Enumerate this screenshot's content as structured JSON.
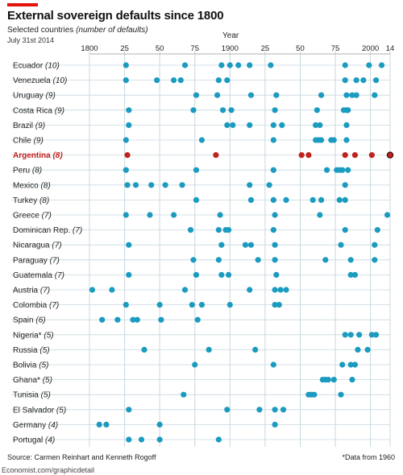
{
  "header": {
    "title": "External sovereign defaults since 1800",
    "subtitle_main": "Selected countries ",
    "subtitle_italic": "(number of defaults)",
    "date": "July 31st 2014",
    "axis_title": "Year"
  },
  "footer": {
    "source": "Source: Carmen Reinhart and Kenneth Rogoff",
    "note": "*Data from 1960",
    "url": "Economist.com/graphicdetail"
  },
  "colors": {
    "dot": "#1b9bbf",
    "highlight": "#c0221d",
    "grid": "#c8d8e0",
    "title_bar": "#e3120b"
  },
  "chart_data": {
    "type": "scatter",
    "title": "External sovereign defaults since 1800",
    "xlabel": "Year",
    "xlim": [
      1800,
      2014
    ],
    "x_ticks": [
      1800,
      1825,
      1850,
      1875,
      1900,
      1925,
      1950,
      1975,
      2000,
      2014
    ],
    "x_tick_labels": [
      "1800",
      "25",
      "50",
      "75",
      "1900",
      "25",
      "50",
      "75",
      "2000",
      "14"
    ],
    "grid": true,
    "series": [
      {
        "name": "Ecuador",
        "count": "(10)",
        "years": [
          1826,
          1868,
          1894,
          1900,
          1906,
          1914,
          1929,
          1982,
          1999,
          2008
        ]
      },
      {
        "name": "Venezuela",
        "count": "(10)",
        "years": [
          1826,
          1848,
          1860,
          1865,
          1892,
          1898,
          1982,
          1990,
          1995,
          2004
        ]
      },
      {
        "name": "Uruguay",
        "count": "(9)",
        "years": [
          1876,
          1891,
          1915,
          1933,
          1965,
          1983,
          1987,
          1990,
          2003
        ]
      },
      {
        "name": "Costa Rica",
        "count": "(9)",
        "years": [
          1828,
          1874,
          1895,
          1901,
          1932,
          1962,
          1981,
          1983,
          1984
        ]
      },
      {
        "name": "Brazil",
        "count": "(9)",
        "years": [
          1828,
          1898,
          1902,
          1914,
          1931,
          1937,
          1961,
          1964,
          1983
        ]
      },
      {
        "name": "Chile",
        "count": "(9)",
        "years": [
          1826,
          1880,
          1931,
          1961,
          1963,
          1965,
          1972,
          1974,
          1983
        ]
      },
      {
        "name": "Argentina",
        "count": "(8)",
        "highlight": true,
        "years": [
          1827,
          1890,
          1951,
          1956,
          1982,
          1989,
          2001,
          2014
        ]
      },
      {
        "name": "Peru",
        "count": "(8)",
        "years": [
          1826,
          1876,
          1931,
          1969,
          1976,
          1978,
          1980,
          1984
        ]
      },
      {
        "name": "Mexico",
        "count": "(8)",
        "years": [
          1827,
          1833,
          1844,
          1854,
          1866,
          1914,
          1928,
          1982
        ]
      },
      {
        "name": "Turkey",
        "count": "(8)",
        "years": [
          1876,
          1915,
          1931,
          1940,
          1959,
          1965,
          1978,
          1982
        ]
      },
      {
        "name": "Greece",
        "count": "(7)",
        "years": [
          1826,
          1843,
          1860,
          1893,
          1932,
          1964,
          2012
        ]
      },
      {
        "name": "Dominican Rep.",
        "count": "(7)",
        "years": [
          1872,
          1892,
          1897,
          1899,
          1931,
          1982,
          2005
        ]
      },
      {
        "name": "Nicaragua",
        "count": "(7)",
        "years": [
          1828,
          1894,
          1911,
          1915,
          1932,
          1979,
          2003
        ]
      },
      {
        "name": "Paraguay",
        "count": "(7)",
        "years": [
          1874,
          1892,
          1920,
          1932,
          1968,
          1986,
          2003
        ]
      },
      {
        "name": "Guatemala",
        "count": "(7)",
        "years": [
          1828,
          1876,
          1894,
          1899,
          1933,
          1986,
          1989
        ]
      },
      {
        "name": "Austria",
        "count": "(7)",
        "years": [
          1802,
          1816,
          1868,
          1914,
          1932,
          1936,
          1940
        ]
      },
      {
        "name": "Colombia",
        "count": "(7)",
        "years": [
          1826,
          1850,
          1873,
          1880,
          1900,
          1932,
          1935
        ]
      },
      {
        "name": "Spain",
        "count": "(6)",
        "years": [
          1809,
          1820,
          1831,
          1834,
          1851,
          1877
        ]
      },
      {
        "name": "Nigeria*",
        "count": "(5)",
        "years": [
          1982,
          1986,
          1992,
          2001,
          2004
        ]
      },
      {
        "name": "Russia",
        "count": "(5)",
        "years": [
          1839,
          1885,
          1918,
          1991,
          1998
        ]
      },
      {
        "name": "Bolivia",
        "count": "(5)",
        "years": [
          1875,
          1931,
          1980,
          1986,
          1989
        ]
      },
      {
        "name": "Ghana*",
        "count": "(5)",
        "years": [
          1966,
          1968,
          1970,
          1974,
          1987
        ]
      },
      {
        "name": "Tunisia",
        "count": "(5)",
        "years": [
          1867,
          1956,
          1958,
          1960,
          1979
        ]
      },
      {
        "name": "El Salvador",
        "count": "(5)",
        "years": [
          1828,
          1898,
          1921,
          1932,
          1938
        ]
      },
      {
        "name": "Germany",
        "count": "(4)",
        "years": [
          1807,
          1812,
          1850,
          1932
        ]
      },
      {
        "name": "Portugal",
        "count": "(4)",
        "years": [
          1828,
          1837,
          1850,
          1892
        ]
      }
    ]
  }
}
